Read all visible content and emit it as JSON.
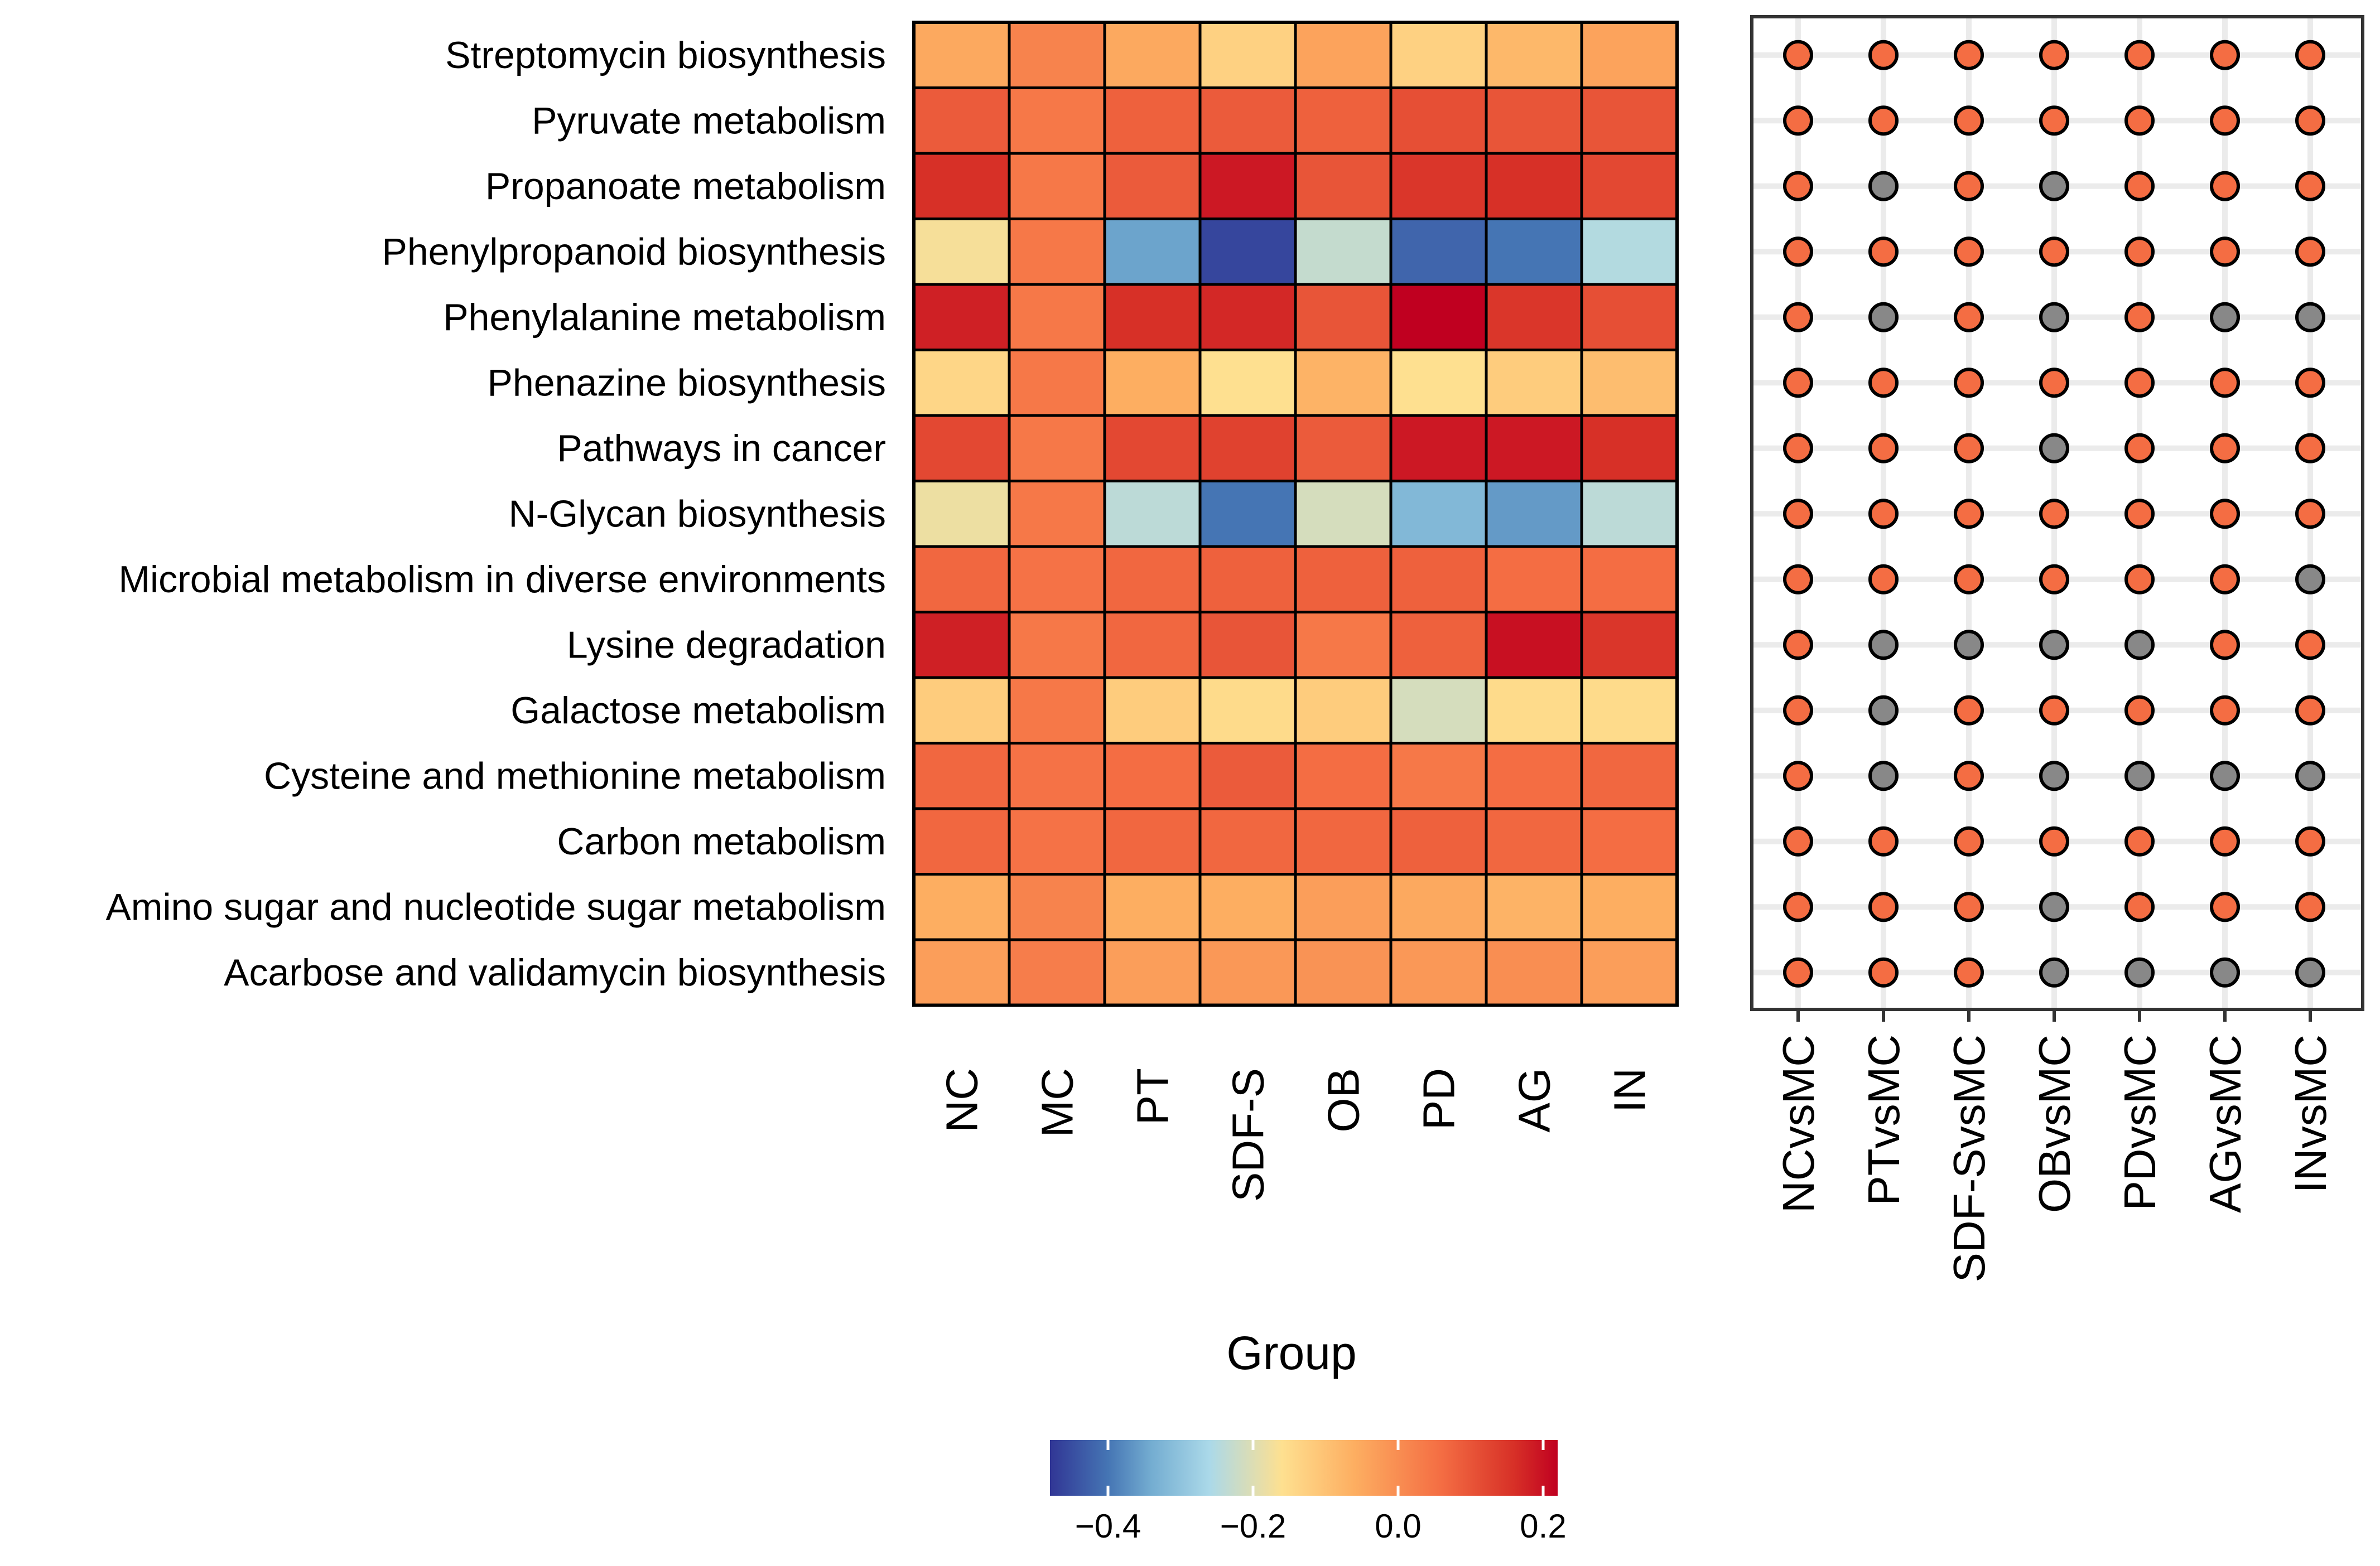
{
  "chart_data": [
    {
      "type": "heatmap",
      "title": "",
      "rows": [
        "Streptomycin biosynthesis",
        "Pyruvate metabolism",
        "Propanoate metabolism",
        "Phenylpropanoid biosynthesis",
        "Phenylalanine metabolism",
        "Phenazine biosynthesis",
        "Pathways in cancer",
        "N-Glycan biosynthesis",
        "Microbial metabolism in diverse environments",
        "Lysine degradation",
        "Galactose metabolism",
        "Cysteine and methionine metabolism",
        "Carbon metabolism",
        "Amino sugar and nucleotide sugar metabolism",
        "Acarbose and validamycin biosynthesis"
      ],
      "columns": [
        "NC",
        "MC",
        "PT",
        "SDF-S",
        "OB",
        "PD",
        "AG",
        "IN"
      ],
      "values": [
        [
          -0.05,
          0.02,
          -0.05,
          -0.13,
          -0.04,
          -0.13,
          -0.08,
          -0.04
        ],
        [
          0.09,
          0.04,
          0.08,
          0.09,
          0.08,
          0.11,
          0.1,
          0.1
        ],
        [
          0.16,
          0.04,
          0.09,
          0.19,
          0.1,
          0.15,
          0.16,
          0.12
        ],
        [
          -0.17,
          0.04,
          -0.35,
          -0.46,
          -0.23,
          -0.42,
          -0.4,
          -0.25
        ],
        [
          0.18,
          0.04,
          0.16,
          0.17,
          0.1,
          0.22,
          0.15,
          0.11
        ],
        [
          -0.14,
          0.04,
          -0.06,
          -0.16,
          -0.07,
          -0.16,
          -0.12,
          -0.09
        ],
        [
          0.12,
          0.04,
          0.12,
          0.13,
          0.09,
          0.19,
          0.19,
          0.16
        ],
        [
          -0.18,
          0.04,
          -0.24,
          -0.4,
          -0.21,
          -0.32,
          -0.36,
          -0.24
        ],
        [
          0.07,
          0.05,
          0.07,
          0.08,
          0.08,
          0.08,
          0.06,
          0.06
        ],
        [
          0.18,
          0.04,
          0.07,
          0.1,
          0.04,
          0.08,
          0.2,
          0.15
        ],
        [
          -0.12,
          0.04,
          -0.12,
          -0.15,
          -0.12,
          -0.21,
          -0.15,
          -0.15
        ],
        [
          0.07,
          0.05,
          0.06,
          0.09,
          0.06,
          0.04,
          0.06,
          0.07
        ],
        [
          0.07,
          0.05,
          0.07,
          0.07,
          0.07,
          0.08,
          0.07,
          0.06
        ],
        [
          -0.06,
          0.02,
          -0.06,
          -0.06,
          -0.03,
          -0.05,
          -0.07,
          -0.06
        ],
        [
          -0.03,
          0.03,
          -0.03,
          -0.02,
          -0.01,
          -0.02,
          0.0,
          -0.03
        ]
      ],
      "xlabel": "Group",
      "ylabel": "",
      "colorbar": {
        "min": -0.48,
        "max": 0.22,
        "ticks": [
          -0.4,
          -0.2,
          0.0,
          0.2
        ],
        "tick_labels": [
          "−0.4",
          "−0.2",
          "0.0",
          "0.2"
        ],
        "colors": [
          "#313695",
          "#4575b4",
          "#74add1",
          "#abd9e9",
          "#fee090",
          "#fdae61",
          "#f46d43",
          "#d73027",
          "#c00020"
        ],
        "color_stops": [
          -0.48,
          -0.4,
          -0.34,
          -0.26,
          -0.16,
          -0.06,
          0.06,
          0.16,
          0.22
        ]
      }
    },
    {
      "type": "scatter",
      "title": "",
      "rows": [
        "Streptomycin biosynthesis",
        "Pyruvate metabolism",
        "Propanoate metabolism",
        "Phenylpropanoid biosynthesis",
        "Phenylalanine metabolism",
        "Phenazine biosynthesis",
        "Pathways in cancer",
        "N-Glycan biosynthesis",
        "Microbial metabolism in diverse environments",
        "Lysine degradation",
        "Galactose metabolism",
        "Cysteine and methionine metabolism",
        "Carbon metabolism",
        "Amino sugar and nucleotide sugar metabolism",
        "Acarbose and validamycin biosynthesis"
      ],
      "comparisons": [
        "NCvsMC",
        "PTvsMC",
        "SDF-SvsMC",
        "OBvsMC",
        "PDvsMC",
        "AGvsMC",
        "INvsMC"
      ],
      "significant": [
        [
          1,
          1,
          1,
          1,
          1,
          1,
          1
        ],
        [
          1,
          1,
          1,
          1,
          1,
          1,
          1
        ],
        [
          1,
          0,
          1,
          0,
          1,
          1,
          1
        ],
        [
          1,
          1,
          1,
          1,
          1,
          1,
          1
        ],
        [
          1,
          0,
          1,
          0,
          1,
          0,
          0
        ],
        [
          1,
          1,
          1,
          1,
          1,
          1,
          1
        ],
        [
          1,
          1,
          1,
          0,
          1,
          1,
          1
        ],
        [
          1,
          1,
          1,
          1,
          1,
          1,
          1
        ],
        [
          1,
          1,
          1,
          1,
          1,
          1,
          0
        ],
        [
          1,
          0,
          0,
          0,
          0,
          1,
          1
        ],
        [
          1,
          0,
          1,
          1,
          1,
          1,
          1
        ],
        [
          1,
          0,
          1,
          0,
          0,
          0,
          0
        ],
        [
          1,
          1,
          1,
          1,
          1,
          1,
          1
        ],
        [
          1,
          1,
          1,
          0,
          1,
          1,
          1
        ],
        [
          1,
          1,
          1,
          0,
          0,
          0,
          0
        ]
      ],
      "point_colors": {
        "significant": "#f46d43",
        "not_significant": "#888888"
      }
    }
  ]
}
